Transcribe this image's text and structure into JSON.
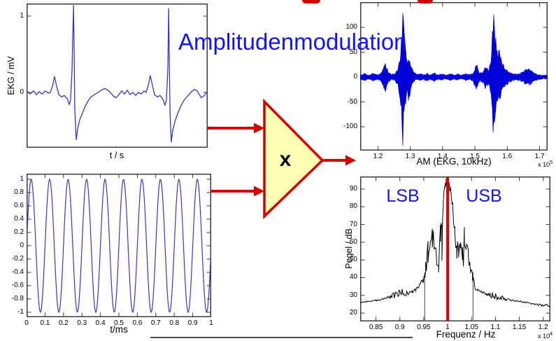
{
  "title": "Amplitudenmodulation",
  "multiplier": {
    "symbol": "x"
  },
  "colors": {
    "title_blue": "#1414f0",
    "annotation_blue": "#1414f0",
    "signal_blue": "#3535d0",
    "am_blue": "#0000d8",
    "arrow_red": "#d40000",
    "triangle_fill": "#ffffb3",
    "spectrum_black": "#000000",
    "carrier_marker_red": "#dd0000"
  },
  "chart_data": [
    {
      "id": "ekg",
      "type": "line",
      "xlabel": "t / s",
      "ylabel": "EKG / mV",
      "xlim": [
        0,
        1
      ],
      "ylim": [
        -0.725,
        1.165
      ],
      "yticks": [
        1,
        0
      ],
      "points": [
        [
          0,
          0.02
        ],
        [
          0.019,
          -0.02
        ],
        [
          0.039,
          0.02
        ],
        [
          0.054,
          -0.03
        ],
        [
          0.069,
          0.01
        ],
        [
          0.085,
          -0.02
        ],
        [
          0.104,
          0.02
        ],
        [
          0.12,
          -0.01
        ],
        [
          0.131,
          0
        ],
        [
          0.143,
          0.08
        ],
        [
          0.154,
          0.21
        ],
        [
          0.166,
          0.08
        ],
        [
          0.178,
          -0.03
        ],
        [
          0.193,
          -0.06
        ],
        [
          0.208,
          -0.04
        ],
        [
          0.224,
          -0.08
        ],
        [
          0.236,
          -0.16
        ],
        [
          0.243,
          -0.1
        ],
        [
          0.251,
          0.3
        ],
        [
          0.259,
          1.14
        ],
        [
          0.263,
          0.5
        ],
        [
          0.266,
          -0.2
        ],
        [
          0.274,
          -0.62
        ],
        [
          0.282,
          -0.48
        ],
        [
          0.293,
          -0.36
        ],
        [
          0.309,
          -0.27
        ],
        [
          0.324,
          -0.18
        ],
        [
          0.34,
          -0.11
        ],
        [
          0.355,
          -0.06
        ],
        [
          0.375,
          -0.03
        ],
        [
          0.394,
          0
        ],
        [
          0.413,
          0.03
        ],
        [
          0.432,
          0.05
        ],
        [
          0.448,
          0.03
        ],
        [
          0.463,
          0
        ],
        [
          0.479,
          -0.05
        ],
        [
          0.494,
          -0.07
        ],
        [
          0.51,
          -0.03
        ],
        [
          0.525,
          0.02
        ],
        [
          0.541,
          -0.02
        ],
        [
          0.556,
          0.03
        ],
        [
          0.571,
          -0.03
        ],
        [
          0.587,
          0
        ],
        [
          0.602,
          -0.04
        ],
        [
          0.618,
          0
        ],
        [
          0.633,
          -0.02
        ],
        [
          0.649,
          0.02
        ],
        [
          0.66,
          0
        ],
        [
          0.672,
          0.09
        ],
        [
          0.683,
          0.22
        ],
        [
          0.695,
          0.09
        ],
        [
          0.707,
          -0.03
        ],
        [
          0.722,
          -0.06
        ],
        [
          0.737,
          -0.04
        ],
        [
          0.753,
          -0.09
        ],
        [
          0.764,
          -0.17
        ],
        [
          0.772,
          -0.1
        ],
        [
          0.78,
          0.3
        ],
        [
          0.784,
          1.1
        ],
        [
          0.788,
          0.4
        ],
        [
          0.792,
          -0.25
        ],
        [
          0.799,
          -0.65
        ],
        [
          0.807,
          -0.5
        ],
        [
          0.819,
          -0.38
        ],
        [
          0.834,
          -0.28
        ],
        [
          0.849,
          -0.19
        ],
        [
          0.865,
          -0.12
        ],
        [
          0.88,
          -0.07
        ],
        [
          0.896,
          -0.03
        ],
        [
          0.911,
          0.01
        ],
        [
          0.927,
          0.04
        ],
        [
          0.942,
          0.02
        ],
        [
          0.954,
          -0.03
        ],
        [
          0.965,
          -0.07
        ],
        [
          0.977,
          -0.05
        ],
        [
          0.988,
          -0.02
        ],
        [
          1,
          0.02
        ]
      ]
    },
    {
      "id": "carrier",
      "type": "line",
      "xlabel": "t/ms",
      "xlim": [
        0,
        1
      ],
      "ylim": [
        -1.074,
        1.084
      ],
      "xticks": [
        0,
        0.1,
        0.2,
        0.3,
        0.4,
        0.5,
        0.6,
        0.7,
        0.8,
        0.9,
        1
      ],
      "yticks": [
        1,
        0.8,
        0.6,
        0.4,
        0.2,
        0,
        -0.2,
        -0.4,
        -0.6,
        -0.8,
        -1
      ],
      "signal": {
        "kind": "sine",
        "cycles": 10,
        "amplitude": 1,
        "phase": 0
      }
    },
    {
      "id": "am",
      "type": "line",
      "xlabel": "AM (EKG, 10kHz)",
      "x_scale": {
        "prefix": "x 10",
        "exp": "5"
      },
      "xlim": [
        1.145,
        1.725
      ],
      "ylim": [
        -148,
        151
      ],
      "xticks": [
        1.2,
        1.3,
        1.4,
        1.5,
        1.6,
        1.7
      ],
      "yticks": [
        100,
        50,
        0,
        -50,
        -100
      ],
      "envelope": [
        [
          1.145,
          5
        ],
        [
          1.16,
          8
        ],
        [
          1.17,
          4
        ],
        [
          1.185,
          9
        ],
        [
          1.2,
          5
        ],
        [
          1.212,
          12
        ],
        [
          1.222,
          32
        ],
        [
          1.232,
          12
        ],
        [
          1.242,
          6
        ],
        [
          1.252,
          8
        ],
        [
          1.262,
          18
        ],
        [
          1.271,
          60
        ],
        [
          1.277,
          140
        ],
        [
          1.283,
          75
        ],
        [
          1.289,
          38
        ],
        [
          1.295,
          55
        ],
        [
          1.301,
          30
        ],
        [
          1.31,
          12
        ],
        [
          1.32,
          6
        ],
        [
          1.332,
          8
        ],
        [
          1.342,
          5
        ],
        [
          1.352,
          9
        ],
        [
          1.362,
          5
        ],
        [
          1.374,
          10
        ],
        [
          1.384,
          5
        ],
        [
          1.398,
          7
        ],
        [
          1.41,
          4
        ],
        [
          1.424,
          8
        ],
        [
          1.434,
          5
        ],
        [
          1.448,
          7
        ],
        [
          1.458,
          4
        ],
        [
          1.472,
          8
        ],
        [
          1.484,
          5
        ],
        [
          1.494,
          10
        ],
        [
          1.505,
          30
        ],
        [
          1.514,
          9
        ],
        [
          1.524,
          12
        ],
        [
          1.533,
          25
        ],
        [
          1.543,
          15
        ],
        [
          1.551,
          45
        ],
        [
          1.557,
          140
        ],
        [
          1.564,
          90
        ],
        [
          1.571,
          50
        ],
        [
          1.577,
          60
        ],
        [
          1.584,
          32
        ],
        [
          1.594,
          20
        ],
        [
          1.604,
          15
        ],
        [
          1.614,
          9
        ],
        [
          1.63,
          6
        ],
        [
          1.645,
          10
        ],
        [
          1.658,
          16
        ],
        [
          1.668,
          18
        ],
        [
          1.68,
          12
        ],
        [
          1.694,
          6
        ],
        [
          1.71,
          4
        ],
        [
          1.725,
          5
        ]
      ]
    },
    {
      "id": "spectrum",
      "type": "line",
      "xlabel": "Frequenz / Hz",
      "ylabel": "Pegel / dB",
      "x_scale": {
        "prefix": "x 10",
        "exp": "4"
      },
      "xlim": [
        0.817,
        1.215
      ],
      "ylim": [
        15.3,
        97.1
      ],
      "xticks": [
        0.85,
        0.9,
        0.95,
        1,
        1.05,
        1.1,
        1.15,
        1.2
      ],
      "yticks": [
        90,
        80,
        70,
        60,
        50,
        40,
        30,
        20
      ],
      "carrier_marker_x": 1.0,
      "drop_lines_x": [
        0.952,
        1.053
      ],
      "annotations": {
        "lsb": "LSB",
        "usb": "USB"
      },
      "points": [
        [
          0.817,
          26,
          0.3
        ],
        [
          0.83,
          26.5,
          0.3
        ],
        [
          0.85,
          27,
          0.4
        ],
        [
          0.865,
          28,
          0.5
        ],
        [
          0.878,
          29,
          0.8
        ],
        [
          0.888,
          30,
          1.8
        ],
        [
          0.898,
          31,
          2.4
        ],
        [
          0.908,
          31.5,
          2.4
        ],
        [
          0.916,
          31,
          1.6
        ],
        [
          0.926,
          32,
          0.8
        ],
        [
          0.935,
          33.5,
          0.8
        ],
        [
          0.943,
          36,
          1.5
        ],
        [
          0.949,
          39,
          4
        ],
        [
          0.954,
          45,
          7
        ],
        [
          0.959,
          53,
          8
        ],
        [
          0.964,
          62,
          6
        ],
        [
          0.968,
          61,
          7
        ],
        [
          0.972,
          58,
          8
        ],
        [
          0.977,
          53,
          9
        ],
        [
          0.981,
          55,
          8
        ],
        [
          0.985,
          64,
          7
        ],
        [
          0.988,
          73,
          5
        ],
        [
          0.991,
          83,
          4
        ],
        [
          0.994,
          90,
          3
        ],
        [
          0.997,
          93.5,
          2.5
        ],
        [
          1.0,
          95,
          2
        ],
        [
          1.003,
          93,
          3
        ],
        [
          1.006,
          89.5,
          4
        ],
        [
          1.009,
          84,
          5
        ],
        [
          1.012,
          77,
          5
        ],
        [
          1.015,
          68,
          6
        ],
        [
          1.019,
          58,
          8
        ],
        [
          1.023,
          53,
          9
        ],
        [
          1.027,
          56,
          9
        ],
        [
          1.031,
          60,
          7
        ],
        [
          1.035,
          63,
          6
        ],
        [
          1.039,
          61,
          6
        ],
        [
          1.043,
          55,
          8
        ],
        [
          1.048,
          47,
          7
        ],
        [
          1.052,
          41,
          5
        ],
        [
          1.057,
          35,
          2
        ],
        [
          1.063,
          33,
          1
        ],
        [
          1.072,
          31.5,
          0.8
        ],
        [
          1.082,
          30.5,
          0.8
        ],
        [
          1.092,
          30,
          1.8
        ],
        [
          1.102,
          29.5,
          2.2
        ],
        [
          1.112,
          29,
          1.6
        ],
        [
          1.122,
          28,
          0.9
        ],
        [
          1.142,
          27,
          0.5
        ],
        [
          1.162,
          26,
          0.4
        ],
        [
          1.182,
          25,
          0.4
        ],
        [
          1.2,
          24.5,
          0.8
        ],
        [
          1.215,
          24,
          0.8
        ]
      ]
    }
  ]
}
